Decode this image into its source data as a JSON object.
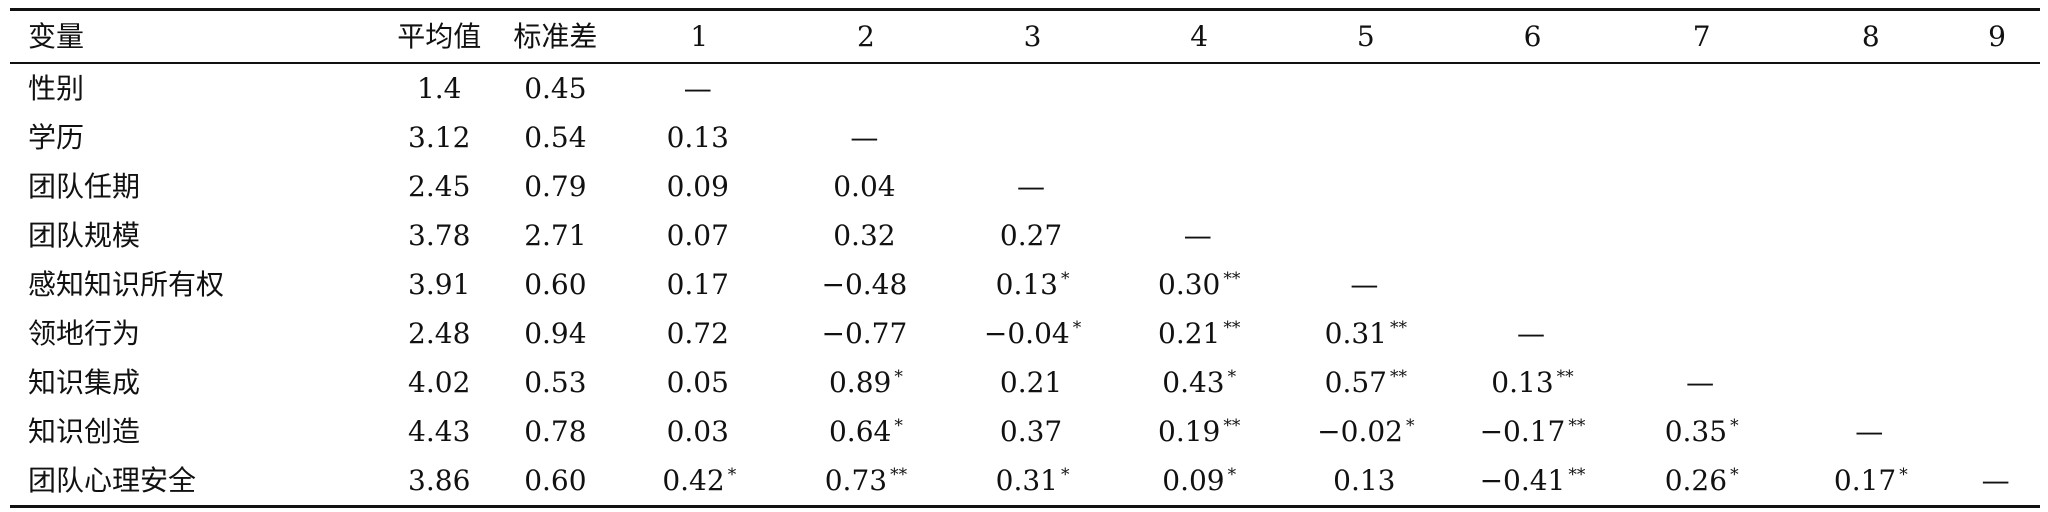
{
  "table": {
    "headers": [
      "变量",
      "平均值",
      "标准差",
      "1",
      "2",
      "3",
      "4",
      "5",
      "6",
      "7",
      "8",
      "9"
    ],
    "rows": [
      {
        "label": "性别",
        "mean": "1.4",
        "sd": "0.45",
        "cells": [
          {
            "v": "—",
            "s": ""
          },
          {
            "v": "",
            "s": ""
          },
          {
            "v": "",
            "s": ""
          },
          {
            "v": "",
            "s": ""
          },
          {
            "v": "",
            "s": ""
          },
          {
            "v": "",
            "s": ""
          },
          {
            "v": "",
            "s": ""
          },
          {
            "v": "",
            "s": ""
          },
          {
            "v": "",
            "s": ""
          }
        ]
      },
      {
        "label": "学历",
        "mean": "3.12",
        "sd": "0.54",
        "cells": [
          {
            "v": "0.13",
            "s": ""
          },
          {
            "v": "—",
            "s": ""
          },
          {
            "v": "",
            "s": ""
          },
          {
            "v": "",
            "s": ""
          },
          {
            "v": "",
            "s": ""
          },
          {
            "v": "",
            "s": ""
          },
          {
            "v": "",
            "s": ""
          },
          {
            "v": "",
            "s": ""
          },
          {
            "v": "",
            "s": ""
          }
        ]
      },
      {
        "label": "团队任期",
        "mean": "2.45",
        "sd": "0.79",
        "cells": [
          {
            "v": "0.09",
            "s": ""
          },
          {
            "v": "0.04",
            "s": ""
          },
          {
            "v": "—",
            "s": ""
          },
          {
            "v": "",
            "s": ""
          },
          {
            "v": "",
            "s": ""
          },
          {
            "v": "",
            "s": ""
          },
          {
            "v": "",
            "s": ""
          },
          {
            "v": "",
            "s": ""
          },
          {
            "v": "",
            "s": ""
          }
        ]
      },
      {
        "label": "团队规模",
        "mean": "3.78",
        "sd": "2.71",
        "cells": [
          {
            "v": "0.07",
            "s": ""
          },
          {
            "v": "0.32",
            "s": ""
          },
          {
            "v": "0.27",
            "s": ""
          },
          {
            "v": "—",
            "s": ""
          },
          {
            "v": "",
            "s": ""
          },
          {
            "v": "",
            "s": ""
          },
          {
            "v": "",
            "s": ""
          },
          {
            "v": "",
            "s": ""
          },
          {
            "v": "",
            "s": ""
          }
        ]
      },
      {
        "label": "感知知识所有权",
        "mean": "3.91",
        "sd": "0.60",
        "cells": [
          {
            "v": "0.17",
            "s": ""
          },
          {
            "v": "−0.48",
            "s": ""
          },
          {
            "v": "0.13",
            "s": "*"
          },
          {
            "v": "0.30",
            "s": "**"
          },
          {
            "v": "—",
            "s": ""
          },
          {
            "v": "",
            "s": ""
          },
          {
            "v": "",
            "s": ""
          },
          {
            "v": "",
            "s": ""
          },
          {
            "v": "",
            "s": ""
          }
        ]
      },
      {
        "label": "领地行为",
        "mean": "2.48",
        "sd": "0.94",
        "cells": [
          {
            "v": "0.72",
            "s": ""
          },
          {
            "v": "−0.77",
            "s": ""
          },
          {
            "v": "−0.04",
            "s": "*"
          },
          {
            "v": "0.21",
            "s": "**"
          },
          {
            "v": "0.31",
            "s": "**"
          },
          {
            "v": "—",
            "s": ""
          },
          {
            "v": "",
            "s": ""
          },
          {
            "v": "",
            "s": ""
          },
          {
            "v": "",
            "s": ""
          }
        ]
      },
      {
        "label": "知识集成",
        "mean": "4.02",
        "sd": "0.53",
        "cells": [
          {
            "v": "0.05",
            "s": ""
          },
          {
            "v": "0.89",
            "s": "*"
          },
          {
            "v": "0.21",
            "s": ""
          },
          {
            "v": "0.43",
            "s": "*"
          },
          {
            "v": "0.57",
            "s": "**"
          },
          {
            "v": "0.13",
            "s": "**"
          },
          {
            "v": "—",
            "s": ""
          },
          {
            "v": "",
            "s": ""
          },
          {
            "v": "",
            "s": ""
          }
        ]
      },
      {
        "label": "知识创造",
        "mean": "4.43",
        "sd": "0.78",
        "cells": [
          {
            "v": "0.03",
            "s": ""
          },
          {
            "v": "0.64",
            "s": "*"
          },
          {
            "v": "0.37",
            "s": ""
          },
          {
            "v": "0.19",
            "s": "**"
          },
          {
            "v": "−0.02",
            "s": "*"
          },
          {
            "v": "−0.17",
            "s": "**"
          },
          {
            "v": "0.35",
            "s": "*"
          },
          {
            "v": "—",
            "s": ""
          },
          {
            "v": "",
            "s": ""
          }
        ]
      },
      {
        "label": "团队心理安全",
        "mean": "3.86",
        "sd": "0.60",
        "cells": [
          {
            "v": "0.42",
            "s": "*"
          },
          {
            "v": "0.73",
            "s": "**"
          },
          {
            "v": "0.31",
            "s": "*"
          },
          {
            "v": "0.09",
            "s": "*"
          },
          {
            "v": "0.13",
            "s": ""
          },
          {
            "v": "−0.41",
            "s": "**"
          },
          {
            "v": "0.26",
            "s": "*"
          },
          {
            "v": "0.17",
            "s": "*"
          },
          {
            "v": "—",
            "s": ""
          }
        ]
      }
    ]
  }
}
